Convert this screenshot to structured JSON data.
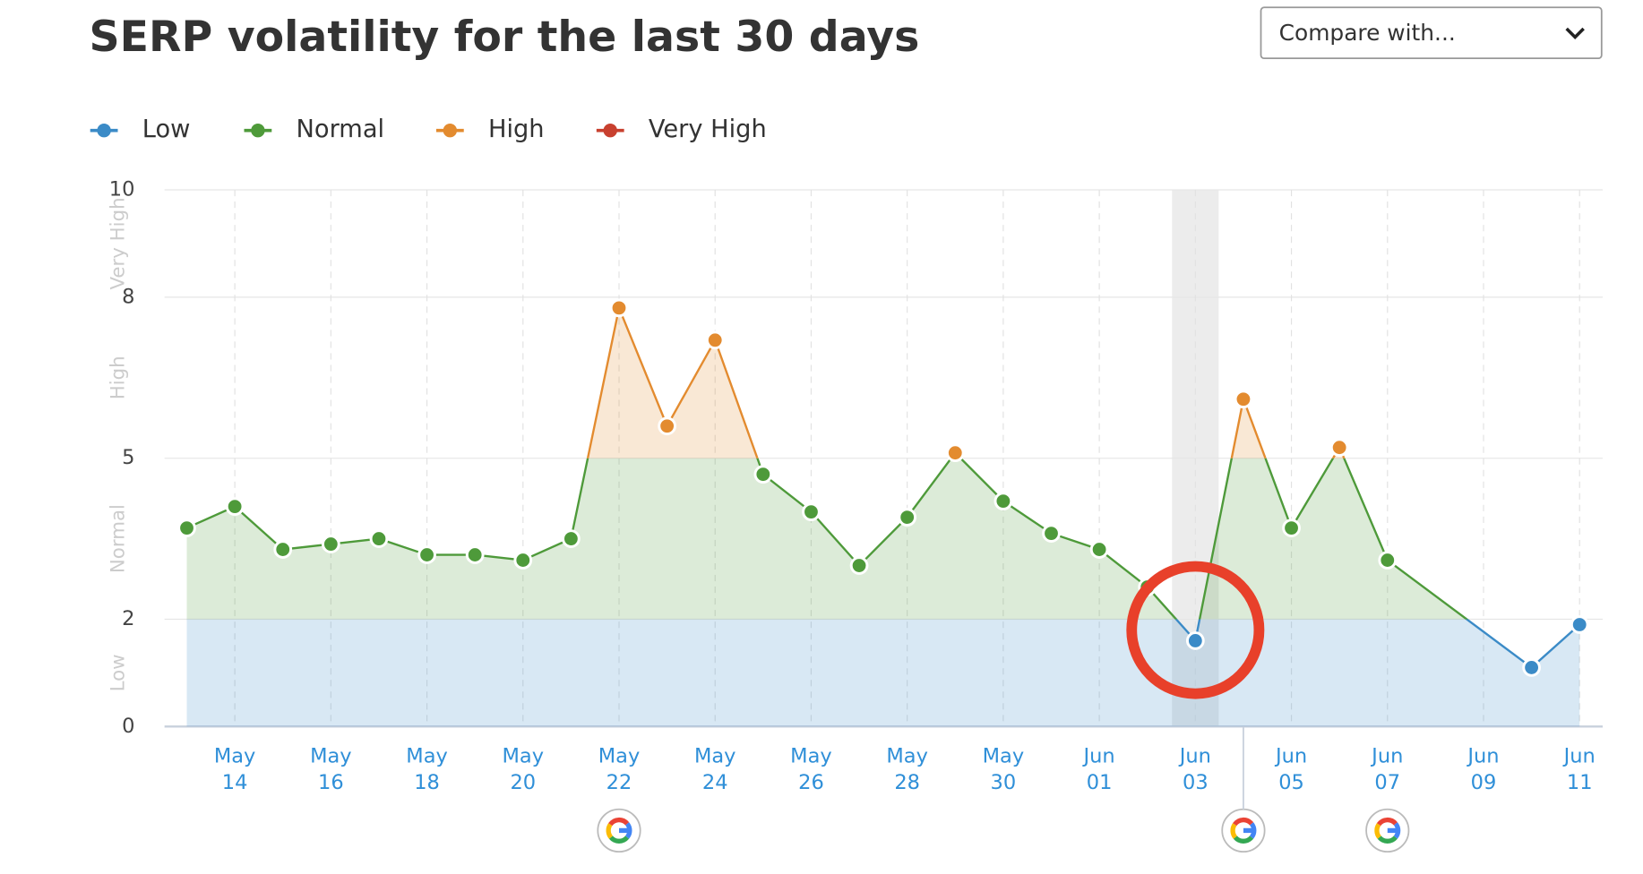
{
  "chart_data": {
    "type": "line",
    "title": "SERP volatility for the last 30 days",
    "dropdown_label": "Compare with...",
    "x": [
      "May 13",
      "May 14",
      "May 15",
      "May 16",
      "May 17",
      "May 18",
      "May 19",
      "May 20",
      "May 21",
      "May 22",
      "May 23",
      "May 24",
      "May 25",
      "May 26",
      "May 27",
      "May 28",
      "May 29",
      "May 30",
      "May 31",
      "Jun 01",
      "Jun 02",
      "Jun 03",
      "Jun 04",
      "Jun 05",
      "Jun 06",
      "Jun 07",
      "Jun 10",
      "Jun 11"
    ],
    "values": [
      3.7,
      4.1,
      3.3,
      3.4,
      3.5,
      3.2,
      3.2,
      3.1,
      3.5,
      7.8,
      5.6,
      7.2,
      4.7,
      4.0,
      3.0,
      3.9,
      5.1,
      4.2,
      3.6,
      3.3,
      2.6,
      1.6,
      6.1,
      3.7,
      5.2,
      3.1,
      1.1,
      1.9
    ],
    "bands": [
      {
        "name": "Low",
        "color": "#3b8bc7",
        "range": [
          0,
          2
        ]
      },
      {
        "name": "Normal",
        "color": "#4e9a3a",
        "range": [
          2,
          5
        ]
      },
      {
        "name": "High",
        "color": "#e38b2f",
        "range": [
          5,
          8
        ]
      },
      {
        "name": "Very High",
        "color": "#c8402f",
        "range": [
          8,
          10
        ]
      }
    ],
    "ylim": [
      0,
      10
    ],
    "yticks": [
      0,
      2,
      5,
      8,
      10
    ],
    "xticks": [
      "May 14",
      "May 16",
      "May 18",
      "May 20",
      "May 22",
      "May 24",
      "May 26",
      "May 28",
      "May 30",
      "Jun 01",
      "Jun 03",
      "Jun 05",
      "Jun 07",
      "Jun 09",
      "Jun 11"
    ],
    "google_updates": [
      "May 22",
      "Jun 04",
      "Jun 07"
    ],
    "highlight": "Jun 03",
    "grid": true
  }
}
